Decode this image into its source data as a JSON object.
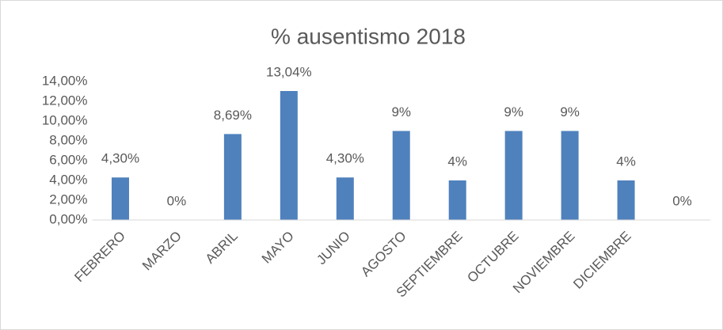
{
  "chart_data": {
    "type": "bar",
    "title": "% ausentismo 2018",
    "categories": [
      "FEBRERO",
      "MARZO",
      "ABRIL",
      "MAYO",
      "JUNIO",
      "AGOSTO",
      "SEPTIEMBRE",
      "OCTUBRE",
      "NOVIEMBRE",
      "DICIEMBRE",
      null
    ],
    "values": [
      4.3,
      0,
      8.69,
      13.04,
      4.3,
      9,
      4,
      9,
      9,
      4,
      0
    ],
    "value_labels": [
      "4,30%",
      "0%",
      "8,69%",
      "13,04%",
      "4,30%",
      "9%",
      "4%",
      "9%",
      "9%",
      "4%",
      "0%"
    ],
    "color": "#4f81bd",
    "ylim": [
      0,
      14
    ],
    "yticks": [
      {
        "value": 0,
        "label": "0,00%"
      },
      {
        "value": 2,
        "label": "2,00%"
      },
      {
        "value": 4,
        "label": "4,00%"
      },
      {
        "value": 6,
        "label": "6,00%"
      },
      {
        "value": 8,
        "label": "8,00%"
      },
      {
        "value": 10,
        "label": "10,00%"
      },
      {
        "value": 12,
        "label": "12,00%"
      },
      {
        "value": 14,
        "label": "14,00%"
      }
    ],
    "grid": false
  }
}
